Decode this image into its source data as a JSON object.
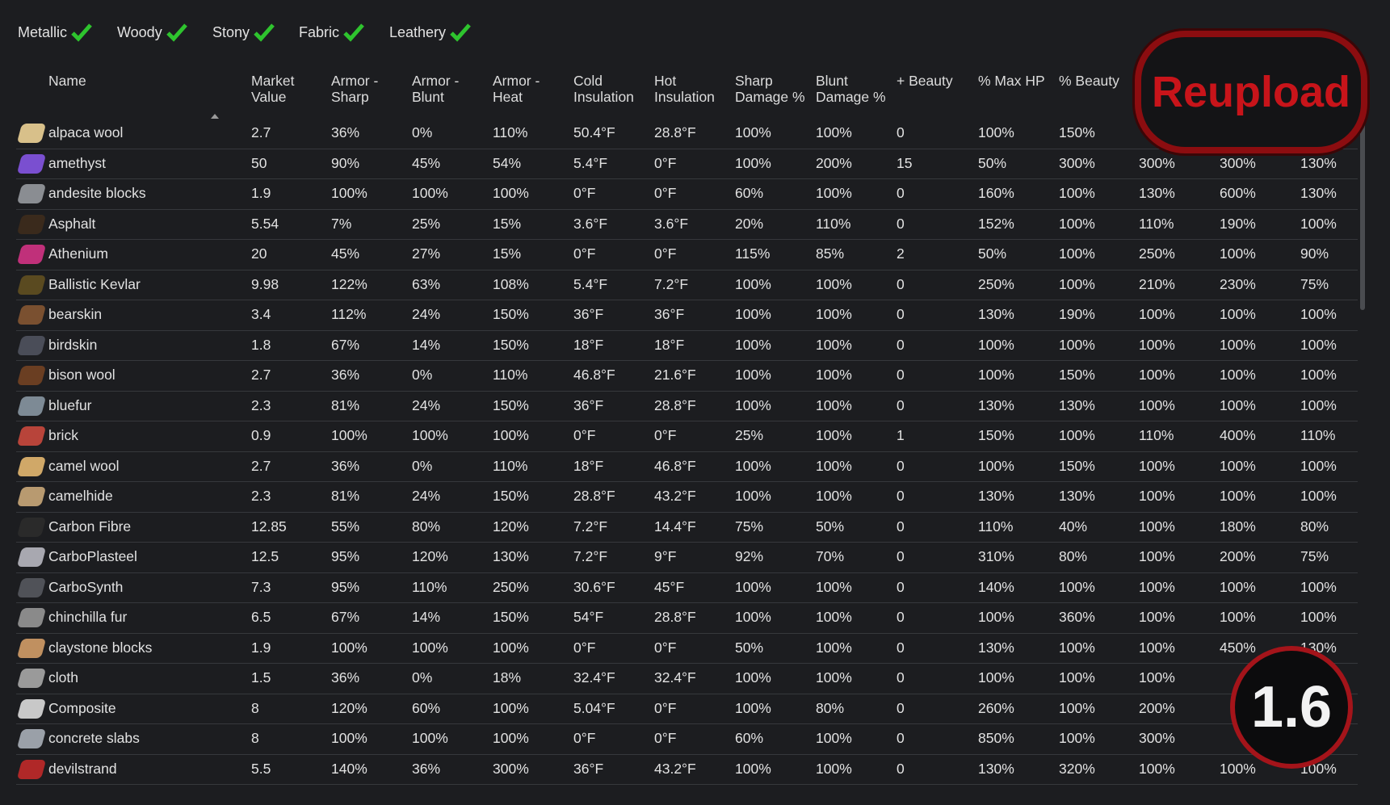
{
  "filters": [
    "Metallic",
    "Woody",
    "Stony",
    "Fabric",
    "Leathery"
  ],
  "table": {
    "headers": [
      "Name",
      "Market Value",
      "Armor - Sharp",
      "Armor - Blunt",
      "Armor - Heat",
      "Cold Insulation",
      "Hot Insulation",
      "Sharp Damage %",
      "Blunt Damage %",
      "+ Beauty",
      "% Max HP",
      "% Beauty"
    ],
    "rows": [
      [
        "alpaca wool",
        "2.7",
        "36%",
        "0%",
        "110%",
        "50.4°F",
        "28.8°F",
        "100%",
        "100%",
        "0",
        "100%",
        "150%",
        null,
        null,
        null
      ],
      [
        "amethyst",
        "50",
        "90%",
        "45%",
        "54%",
        "5.4°F",
        "0°F",
        "100%",
        "200%",
        "15",
        "50%",
        "300%",
        "300%",
        "300%",
        "130%"
      ],
      [
        "andesite blocks",
        "1.9",
        "100%",
        "100%",
        "100%",
        "0°F",
        "0°F",
        "60%",
        "100%",
        "0",
        "160%",
        "100%",
        "130%",
        "600%",
        "130%"
      ],
      [
        "Asphalt",
        "5.54",
        "7%",
        "25%",
        "15%",
        "3.6°F",
        "3.6°F",
        "20%",
        "110%",
        "0",
        "152%",
        "100%",
        "110%",
        "190%",
        "100%"
      ],
      [
        "Athenium",
        "20",
        "45%",
        "27%",
        "15%",
        "0°F",
        "0°F",
        "115%",
        "85%",
        "2",
        "50%",
        "100%",
        "250%",
        "100%",
        "90%"
      ],
      [
        "Ballistic Kevlar",
        "9.98",
        "122%",
        "63%",
        "108%",
        "5.4°F",
        "7.2°F",
        "100%",
        "100%",
        "0",
        "250%",
        "100%",
        "210%",
        "230%",
        "75%"
      ],
      [
        "bearskin",
        "3.4",
        "112%",
        "24%",
        "150%",
        "36°F",
        "36°F",
        "100%",
        "100%",
        "0",
        "130%",
        "190%",
        "100%",
        "100%",
        "100%"
      ],
      [
        "birdskin",
        "1.8",
        "67%",
        "14%",
        "150%",
        "18°F",
        "18°F",
        "100%",
        "100%",
        "0",
        "100%",
        "100%",
        "100%",
        "100%",
        "100%"
      ],
      [
        "bison wool",
        "2.7",
        "36%",
        "0%",
        "110%",
        "46.8°F",
        "21.6°F",
        "100%",
        "100%",
        "0",
        "100%",
        "150%",
        "100%",
        "100%",
        "100%"
      ],
      [
        "bluefur",
        "2.3",
        "81%",
        "24%",
        "150%",
        "36°F",
        "28.8°F",
        "100%",
        "100%",
        "0",
        "130%",
        "130%",
        "100%",
        "100%",
        "100%"
      ],
      [
        "brick",
        "0.9",
        "100%",
        "100%",
        "100%",
        "0°F",
        "0°F",
        "25%",
        "100%",
        "1",
        "150%",
        "100%",
        "110%",
        "400%",
        "110%"
      ],
      [
        "camel wool",
        "2.7",
        "36%",
        "0%",
        "110%",
        "18°F",
        "46.8°F",
        "100%",
        "100%",
        "0",
        "100%",
        "150%",
        "100%",
        "100%",
        "100%"
      ],
      [
        "camelhide",
        "2.3",
        "81%",
        "24%",
        "150%",
        "28.8°F",
        "43.2°F",
        "100%",
        "100%",
        "0",
        "130%",
        "130%",
        "100%",
        "100%",
        "100%"
      ],
      [
        "Carbon Fibre",
        "12.85",
        "55%",
        "80%",
        "120%",
        "7.2°F",
        "14.4°F",
        "75%",
        "50%",
        "0",
        "110%",
        "40%",
        "100%",
        "180%",
        "80%"
      ],
      [
        "CarboPlasteel",
        "12.5",
        "95%",
        "120%",
        "130%",
        "7.2°F",
        "9°F",
        "92%",
        "70%",
        "0",
        "310%",
        "80%",
        "100%",
        "200%",
        "75%"
      ],
      [
        "CarboSynth",
        "7.3",
        "95%",
        "110%",
        "250%",
        "30.6°F",
        "45°F",
        "100%",
        "100%",
        "0",
        "140%",
        "100%",
        "100%",
        "100%",
        "100%"
      ],
      [
        "chinchilla fur",
        "6.5",
        "67%",
        "14%",
        "150%",
        "54°F",
        "28.8°F",
        "100%",
        "100%",
        "0",
        "100%",
        "360%",
        "100%",
        "100%",
        "100%"
      ],
      [
        "claystone blocks",
        "1.9",
        "100%",
        "100%",
        "100%",
        "0°F",
        "0°F",
        "50%",
        "100%",
        "0",
        "130%",
        "100%",
        "100%",
        "450%",
        "130%"
      ],
      [
        "cloth",
        "1.5",
        "36%",
        "0%",
        "18%",
        "32.4°F",
        "32.4°F",
        "100%",
        "100%",
        "0",
        "100%",
        "100%",
        "100%",
        null,
        null
      ],
      [
        "Composite",
        "8",
        "120%",
        "60%",
        "100%",
        "5.04°F",
        "0°F",
        "100%",
        "80%",
        "0",
        "260%",
        "100%",
        "200%",
        null,
        null
      ],
      [
        "concrete slabs",
        "8",
        "100%",
        "100%",
        "100%",
        "0°F",
        "0°F",
        "60%",
        "100%",
        "0",
        "850%",
        "100%",
        "300%",
        null,
        null
      ],
      [
        "devilstrand",
        "5.5",
        "140%",
        "36%",
        "300%",
        "36°F",
        "43.2°F",
        "100%",
        "100%",
        "0",
        "130%",
        "320%",
        "100%",
        "100%",
        "100%"
      ]
    ]
  },
  "overlays": {
    "reupload": "Reupload",
    "version": "1.6"
  }
}
